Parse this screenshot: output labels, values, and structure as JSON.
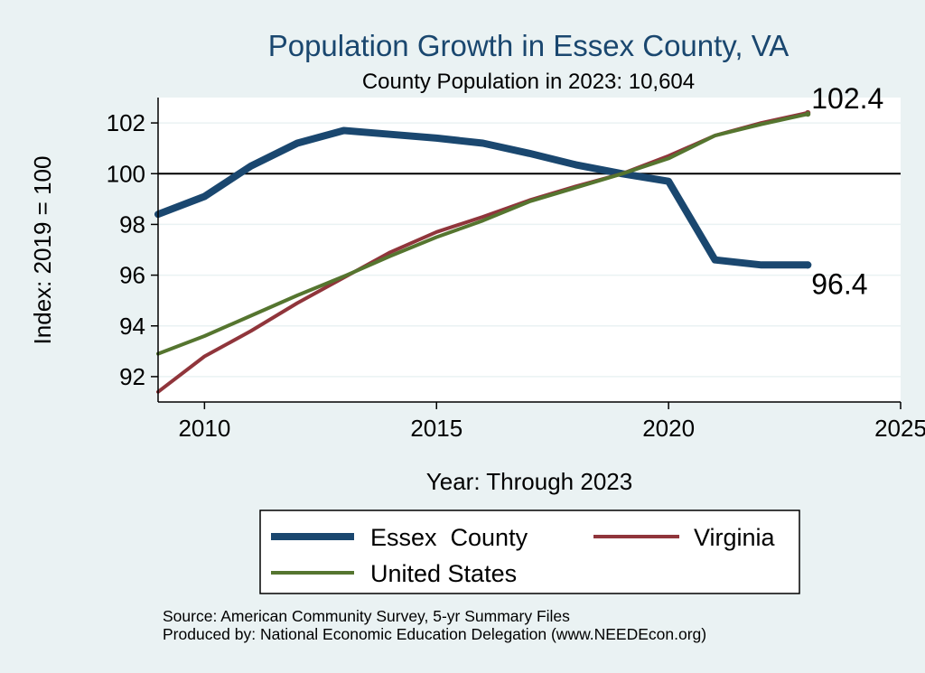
{
  "chart_data": {
    "type": "line",
    "title": "Population Growth in Essex County, VA",
    "subtitle": "County Population in 2023: 10,604",
    "xlabel": "Year: Through 2023",
    "ylabel": "Index: 2019 = 100",
    "xlim": [
      2009,
      2025
    ],
    "ylim": [
      91,
      103
    ],
    "x_ticks": [
      2010,
      2015,
      2020,
      2025
    ],
    "y_ticks": [
      92,
      94,
      96,
      98,
      100,
      102
    ],
    "reference_line": 100,
    "grid": true,
    "legend_position": "bottom",
    "series": [
      {
        "name": "Essex  County",
        "color": "#1a476f",
        "x": [
          2009,
          2010,
          2011,
          2012,
          2013,
          2014,
          2015,
          2016,
          2017,
          2018,
          2019,
          2020,
          2021,
          2022,
          2023
        ],
        "values": [
          98.4,
          99.1,
          100.3,
          101.2,
          101.7,
          101.55,
          101.4,
          101.2,
          100.8,
          100.35,
          100.0,
          99.7,
          96.6,
          96.4,
          96.4
        ]
      },
      {
        "name": "Virginia",
        "color": "#90353b",
        "x": [
          2009,
          2010,
          2011,
          2012,
          2013,
          2014,
          2015,
          2016,
          2017,
          2018,
          2019,
          2020,
          2021,
          2022,
          2023
        ],
        "values": [
          91.4,
          92.8,
          93.8,
          94.9,
          95.9,
          96.9,
          97.7,
          98.3,
          98.95,
          99.5,
          100.0,
          100.7,
          101.5,
          102.0,
          102.4
        ]
      },
      {
        "name": "United States",
        "color": "#55752f",
        "x": [
          2009,
          2010,
          2011,
          2012,
          2013,
          2014,
          2015,
          2016,
          2017,
          2018,
          2019,
          2020,
          2021,
          2022,
          2023
        ],
        "values": [
          92.9,
          93.6,
          94.4,
          95.2,
          95.95,
          96.75,
          97.5,
          98.15,
          98.9,
          99.45,
          100.0,
          100.6,
          101.5,
          101.95,
          102.35
        ]
      }
    ],
    "annotations": [
      {
        "text": "102.4",
        "x": 2023,
        "y": 102.4
      },
      {
        "text": "96.4",
        "x": 2023,
        "y": 96.4
      }
    ],
    "notes": [
      "Source: American Community Survey, 5-yr Summary Files",
      "Produced by: National Economic Education Delegation (www.NEEDEcon.org)"
    ]
  }
}
